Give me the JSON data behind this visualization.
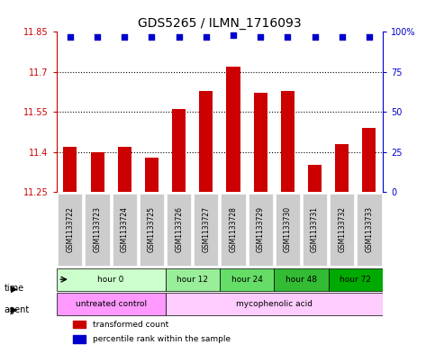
{
  "title": "GDS5265 / ILMN_1716093",
  "samples": [
    "GSM1133722",
    "GSM1133723",
    "GSM1133724",
    "GSM1133725",
    "GSM1133726",
    "GSM1133727",
    "GSM1133728",
    "GSM1133729",
    "GSM1133730",
    "GSM1133731",
    "GSM1133732",
    "GSM1133733"
  ],
  "bar_values": [
    11.42,
    11.4,
    11.42,
    11.38,
    11.56,
    11.63,
    11.72,
    11.62,
    11.63,
    11.35,
    11.43,
    11.49
  ],
  "percentile_values": [
    97,
    97,
    97,
    97,
    97,
    97,
    98,
    97,
    97,
    97,
    97,
    97
  ],
  "bar_color": "#cc0000",
  "dot_color": "#0000cc",
  "ylim_left": [
    11.25,
    11.85
  ],
  "ylim_right": [
    0,
    100
  ],
  "yticks_left": [
    11.25,
    11.4,
    11.55,
    11.7,
    11.85
  ],
  "yticks_right": [
    0,
    25,
    50,
    75,
    100
  ],
  "ytick_labels_left": [
    "11.25",
    "11.4",
    "11.55",
    "11.7",
    "11.85"
  ],
  "ytick_labels_right": [
    "0",
    "25",
    "50",
    "75",
    "100%"
  ],
  "dotted_lines": [
    11.4,
    11.55,
    11.7
  ],
  "time_groups": [
    {
      "label": "hour 0",
      "start": 0,
      "end": 4,
      "color": "#ccffcc"
    },
    {
      "label": "hour 12",
      "start": 4,
      "end": 6,
      "color": "#99ee99"
    },
    {
      "label": "hour 24",
      "start": 6,
      "end": 8,
      "color": "#66dd66"
    },
    {
      "label": "hour 48",
      "start": 8,
      "end": 10,
      "color": "#33bb33"
    },
    {
      "label": "hour 72",
      "start": 10,
      "end": 12,
      "color": "#00aa00"
    }
  ],
  "agent_groups": [
    {
      "label": "untreated control",
      "start": 0,
      "end": 4,
      "color": "#ff99ff"
    },
    {
      "label": "mycophenolic acid",
      "start": 4,
      "end": 12,
      "color": "#ffccff"
    }
  ],
  "legend_items": [
    {
      "label": "transformed count",
      "color": "#cc0000",
      "marker": "s"
    },
    {
      "label": "percentile rank within the sample",
      "color": "#0000cc",
      "marker": "s"
    }
  ],
  "bg_color": "#ffffff",
  "grid_color": "#cccccc",
  "sample_bg": "#cccccc"
}
